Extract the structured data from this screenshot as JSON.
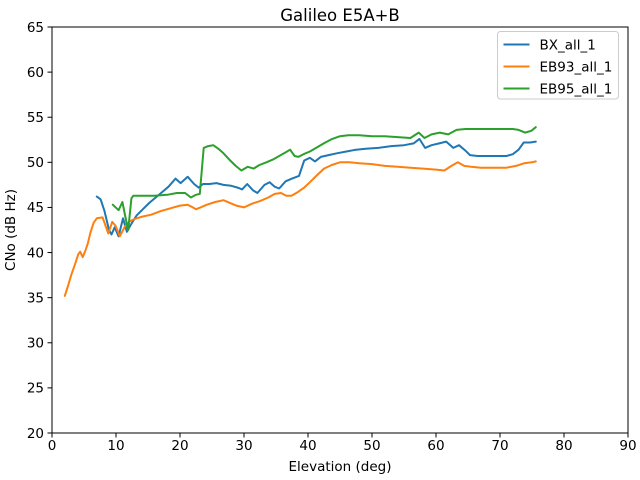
{
  "chart_data": {
    "type": "line",
    "title": "Galileo E5A+B",
    "xlabel": "Elevation (deg)",
    "ylabel": "CNo (dB Hz)",
    "xlim": [
      0,
      90
    ],
    "ylim": [
      20,
      65
    ],
    "xticks": [
      0,
      10,
      20,
      30,
      40,
      50,
      60,
      70,
      80,
      90
    ],
    "yticks": [
      20,
      25,
      30,
      35,
      40,
      45,
      50,
      55,
      60,
      65
    ],
    "grid": false,
    "legend_position": "upper right",
    "legend_border_color": "#cccccc",
    "background_color": "#ffffff",
    "series": [
      {
        "name": "BX_all_1",
        "color": "#1f77b4",
        "points": [
          [
            7.0,
            46.2
          ],
          [
            7.6,
            45.9
          ],
          [
            8.2,
            44.6
          ],
          [
            8.9,
            42.5
          ],
          [
            9.3,
            42.0
          ],
          [
            9.8,
            42.8
          ],
          [
            10.4,
            41.8
          ],
          [
            11.1,
            43.8
          ],
          [
            11.7,
            42.3
          ],
          [
            12.4,
            43.2
          ],
          [
            13.2,
            44.1
          ],
          [
            14.2,
            44.8
          ],
          [
            15.2,
            45.5
          ],
          [
            16.2,
            46.1
          ],
          [
            17.2,
            46.7
          ],
          [
            18.2,
            47.3
          ],
          [
            19.3,
            48.2
          ],
          [
            20.1,
            47.7
          ],
          [
            21.2,
            48.4
          ],
          [
            22.2,
            47.6
          ],
          [
            22.9,
            47.2
          ],
          [
            23.6,
            47.6
          ],
          [
            24.6,
            47.6
          ],
          [
            25.7,
            47.7
          ],
          [
            26.8,
            47.5
          ],
          [
            28.0,
            47.4
          ],
          [
            29.0,
            47.2
          ],
          [
            29.7,
            47.0
          ],
          [
            30.5,
            47.6
          ],
          [
            31.4,
            46.9
          ],
          [
            32.1,
            46.6
          ],
          [
            33.2,
            47.5
          ],
          [
            34.0,
            47.8
          ],
          [
            34.8,
            47.3
          ],
          [
            35.5,
            47.1
          ],
          [
            36.5,
            47.9
          ],
          [
            37.5,
            48.2
          ],
          [
            38.6,
            48.5
          ],
          [
            39.4,
            50.2
          ],
          [
            40.3,
            50.5
          ],
          [
            41.1,
            50.1
          ],
          [
            42.0,
            50.6
          ],
          [
            43.2,
            50.8
          ],
          [
            44.5,
            51.0
          ],
          [
            46.0,
            51.2
          ],
          [
            47.5,
            51.4
          ],
          [
            49.0,
            51.5
          ],
          [
            51.0,
            51.6
          ],
          [
            53.0,
            51.8
          ],
          [
            55.0,
            51.9
          ],
          [
            56.5,
            52.1
          ],
          [
            57.4,
            52.6
          ],
          [
            58.3,
            51.6
          ],
          [
            59.3,
            51.9
          ],
          [
            60.5,
            52.1
          ],
          [
            61.6,
            52.3
          ],
          [
            62.7,
            51.6
          ],
          [
            63.6,
            51.9
          ],
          [
            64.6,
            51.3
          ],
          [
            65.3,
            50.8
          ],
          [
            66.5,
            50.7
          ],
          [
            68.0,
            50.7
          ],
          [
            69.5,
            50.7
          ],
          [
            71.0,
            50.7
          ],
          [
            72.0,
            50.9
          ],
          [
            72.9,
            51.4
          ],
          [
            73.7,
            52.2
          ],
          [
            74.7,
            52.2
          ],
          [
            75.6,
            52.3
          ]
        ]
      },
      {
        "name": "EB93_all_1",
        "color": "#ff7f0e",
        "points": [
          [
            2.0,
            35.2
          ],
          [
            2.5,
            36.3
          ],
          [
            3.0,
            37.5
          ],
          [
            3.6,
            38.7
          ],
          [
            4.1,
            39.8
          ],
          [
            4.4,
            40.1
          ],
          [
            4.8,
            39.5
          ],
          [
            5.2,
            40.2
          ],
          [
            5.6,
            41.0
          ],
          [
            6.0,
            42.2
          ],
          [
            6.5,
            43.3
          ],
          [
            7.0,
            43.8
          ],
          [
            7.9,
            43.9
          ],
          [
            8.4,
            42.9
          ],
          [
            8.8,
            42.1
          ],
          [
            9.4,
            43.4
          ],
          [
            9.9,
            43.0
          ],
          [
            10.6,
            41.8
          ],
          [
            11.4,
            42.9
          ],
          [
            12.2,
            43.5
          ],
          [
            13.2,
            43.8
          ],
          [
            14.2,
            44.0
          ],
          [
            15.5,
            44.2
          ],
          [
            17.0,
            44.6
          ],
          [
            18.5,
            44.9
          ],
          [
            20.0,
            45.2
          ],
          [
            21.2,
            45.3
          ],
          [
            22.0,
            45.0
          ],
          [
            22.5,
            44.8
          ],
          [
            23.2,
            45.0
          ],
          [
            24.2,
            45.3
          ],
          [
            25.5,
            45.6
          ],
          [
            26.8,
            45.8
          ],
          [
            27.8,
            45.5
          ],
          [
            28.8,
            45.2
          ],
          [
            30.0,
            45.0
          ],
          [
            31.2,
            45.4
          ],
          [
            32.5,
            45.7
          ],
          [
            33.8,
            46.1
          ],
          [
            34.8,
            46.5
          ],
          [
            35.8,
            46.6
          ],
          [
            36.6,
            46.3
          ],
          [
            37.4,
            46.3
          ],
          [
            38.4,
            46.7
          ],
          [
            39.4,
            47.2
          ],
          [
            40.3,
            47.8
          ],
          [
            41.3,
            48.5
          ],
          [
            42.5,
            49.3
          ],
          [
            43.7,
            49.7
          ],
          [
            45.0,
            50.0
          ],
          [
            46.5,
            50.0
          ],
          [
            48.0,
            49.9
          ],
          [
            50.0,
            49.8
          ],
          [
            52.0,
            49.6
          ],
          [
            54.0,
            49.5
          ],
          [
            56.0,
            49.4
          ],
          [
            58.0,
            49.3
          ],
          [
            60.0,
            49.2
          ],
          [
            61.3,
            49.1
          ],
          [
            62.4,
            49.6
          ],
          [
            63.4,
            50.0
          ],
          [
            64.4,
            49.6
          ],
          [
            65.5,
            49.5
          ],
          [
            67.0,
            49.4
          ],
          [
            69.0,
            49.4
          ],
          [
            71.0,
            49.4
          ],
          [
            72.5,
            49.6
          ],
          [
            73.8,
            49.9
          ],
          [
            75.0,
            50.0
          ],
          [
            75.6,
            50.1
          ]
        ]
      },
      {
        "name": "EB95_all_1",
        "color": "#2ca02c",
        "points": [
          [
            9.5,
            45.3
          ],
          [
            10.4,
            44.7
          ],
          [
            11.0,
            45.6
          ],
          [
            11.6,
            43.5
          ],
          [
            11.9,
            42.5
          ],
          [
            12.4,
            46.0
          ],
          [
            12.7,
            46.3
          ],
          [
            14.0,
            46.3
          ],
          [
            16.0,
            46.3
          ],
          [
            18.0,
            46.4
          ],
          [
            19.5,
            46.6
          ],
          [
            20.8,
            46.6
          ],
          [
            21.7,
            46.1
          ],
          [
            22.5,
            46.4
          ],
          [
            23.1,
            46.5
          ],
          [
            23.7,
            51.6
          ],
          [
            24.4,
            51.8
          ],
          [
            25.2,
            51.9
          ],
          [
            26.0,
            51.5
          ],
          [
            26.8,
            51.0
          ],
          [
            27.7,
            50.3
          ],
          [
            28.7,
            49.6
          ],
          [
            29.6,
            49.1
          ],
          [
            30.6,
            49.5
          ],
          [
            31.5,
            49.3
          ],
          [
            32.4,
            49.7
          ],
          [
            33.5,
            50.0
          ],
          [
            34.5,
            50.3
          ],
          [
            35.5,
            50.7
          ],
          [
            36.5,
            51.1
          ],
          [
            37.2,
            51.4
          ],
          [
            37.9,
            50.7
          ],
          [
            38.5,
            50.6
          ],
          [
            39.3,
            50.9
          ],
          [
            40.3,
            51.2
          ],
          [
            41.5,
            51.7
          ],
          [
            42.7,
            52.2
          ],
          [
            43.8,
            52.6
          ],
          [
            45.0,
            52.9
          ],
          [
            46.3,
            53.0
          ],
          [
            48.0,
            53.0
          ],
          [
            50.0,
            52.9
          ],
          [
            52.0,
            52.9
          ],
          [
            54.0,
            52.8
          ],
          [
            56.0,
            52.7
          ],
          [
            57.3,
            53.3
          ],
          [
            58.2,
            52.7
          ],
          [
            59.3,
            53.1
          ],
          [
            60.6,
            53.3
          ],
          [
            61.9,
            53.1
          ],
          [
            63.2,
            53.6
          ],
          [
            64.6,
            53.7
          ],
          [
            66.0,
            53.7
          ],
          [
            68.0,
            53.7
          ],
          [
            70.0,
            53.7
          ],
          [
            72.0,
            53.7
          ],
          [
            72.9,
            53.6
          ],
          [
            73.9,
            53.3
          ],
          [
            74.9,
            53.5
          ],
          [
            75.6,
            53.9
          ]
        ]
      }
    ]
  }
}
